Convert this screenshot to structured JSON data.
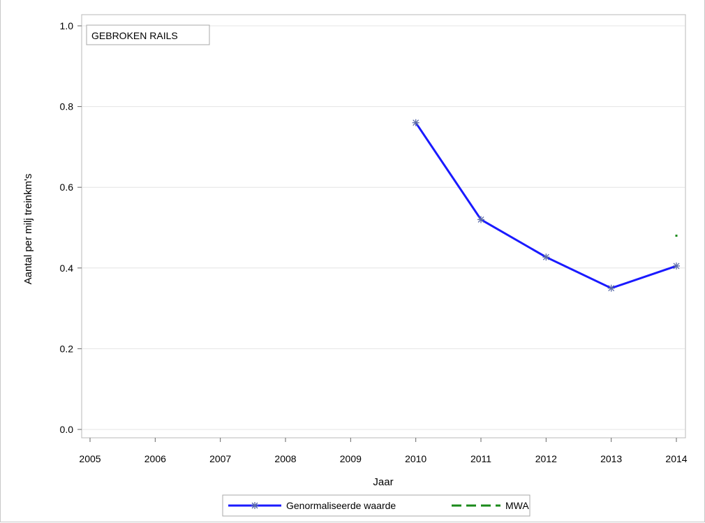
{
  "chart_data": {
    "type": "line",
    "annotation": "GEBROKEN RAILS",
    "xlabel": "Jaar",
    "ylabel": "Aantal per milj treinkm's",
    "xlim": [
      2005,
      2014
    ],
    "ylim": [
      0.0,
      1.0
    ],
    "x_ticks": [
      "2005",
      "2006",
      "2007",
      "2008",
      "2009",
      "2010",
      "2011",
      "2012",
      "2013",
      "2014"
    ],
    "y_ticks": [
      "0.0",
      "0.2",
      "0.4",
      "0.6",
      "0.8",
      "1.0"
    ],
    "grid": "horizontal",
    "legend_position": "bottom",
    "series": [
      {
        "name": "Genormaliseerde waarde",
        "color": "#1a1aff",
        "marker": "asterisk",
        "x": [
          2010,
          2011,
          2012,
          2013,
          2014
        ],
        "y": [
          0.76,
          0.52,
          0.427,
          0.35,
          0.405
        ]
      },
      {
        "name": "MWA",
        "color": "#1a8a1a",
        "style": "dashed",
        "x": [
          2014
        ],
        "y": [
          0.48
        ]
      }
    ]
  }
}
